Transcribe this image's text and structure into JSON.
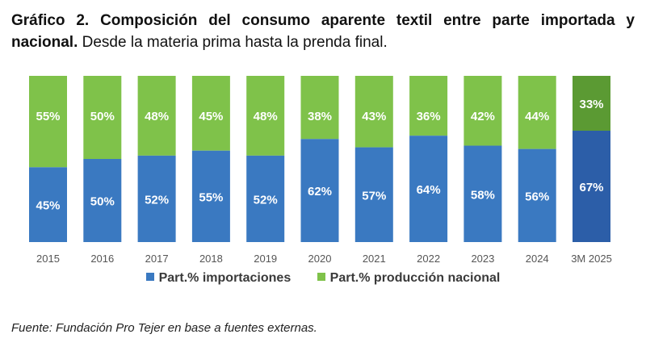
{
  "title": {
    "bold": "Gráfico 2. Composición del consumo aparente textil entre parte importada y nacional.",
    "normal": "Desde la materia prima hasta la prenda final."
  },
  "chart_data": {
    "type": "bar",
    "stacked": true,
    "categories": [
      "2015",
      "2016",
      "2017",
      "2018",
      "2019",
      "2020",
      "2021",
      "2022",
      "2023",
      "2024",
      "3M 2025"
    ],
    "series": [
      {
        "name": "Part.% importaciones",
        "values": [
          45,
          50,
          52,
          55,
          52,
          62,
          57,
          64,
          58,
          56,
          67
        ],
        "labels": [
          "45%",
          "50%",
          "52%",
          "55%",
          "52%",
          "62%",
          "57%",
          "64%",
          "58%",
          "56%",
          "67%"
        ]
      },
      {
        "name": "Part.% producción nacional",
        "values": [
          55,
          50,
          48,
          45,
          48,
          38,
          43,
          36,
          42,
          44,
          33
        ],
        "labels": [
          "55%",
          "50%",
          "48%",
          "45%",
          "48%",
          "38%",
          "43%",
          "36%",
          "42%",
          "44%",
          "33%"
        ]
      }
    ],
    "ylim": [
      0,
      100
    ],
    "title": "Composición del consumo aparente textil entre parte importada y nacional",
    "xlabel": "",
    "ylabel": "",
    "legend": "bottom"
  },
  "colors": {
    "import": "#3a79c1",
    "import_highlight": "#2c5ea8",
    "national": "#7fc24a",
    "national_highlight": "#5b9a33",
    "axis_text": "#555555"
  },
  "source": "Fuente: Fundación Pro Tejer en base a fuentes externas."
}
